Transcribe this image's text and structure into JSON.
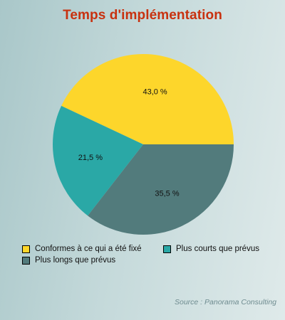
{
  "chart_data": {
    "type": "pie",
    "title": "Temps d'implémentation",
    "categories": [
      "Conformes à ce qui a été fixé",
      "Plus courts que prévus",
      "Plus longs que prévus"
    ],
    "values": [
      43.0,
      21.5,
      35.5
    ],
    "value_labels": [
      "43,0 %",
      "21,5 %",
      "35,5 %"
    ],
    "colors": [
      "#fdd62b",
      "#2aa8a6",
      "#527b7c"
    ],
    "legend_position": "bottom",
    "source": "Source : Panorama Consulting"
  }
}
